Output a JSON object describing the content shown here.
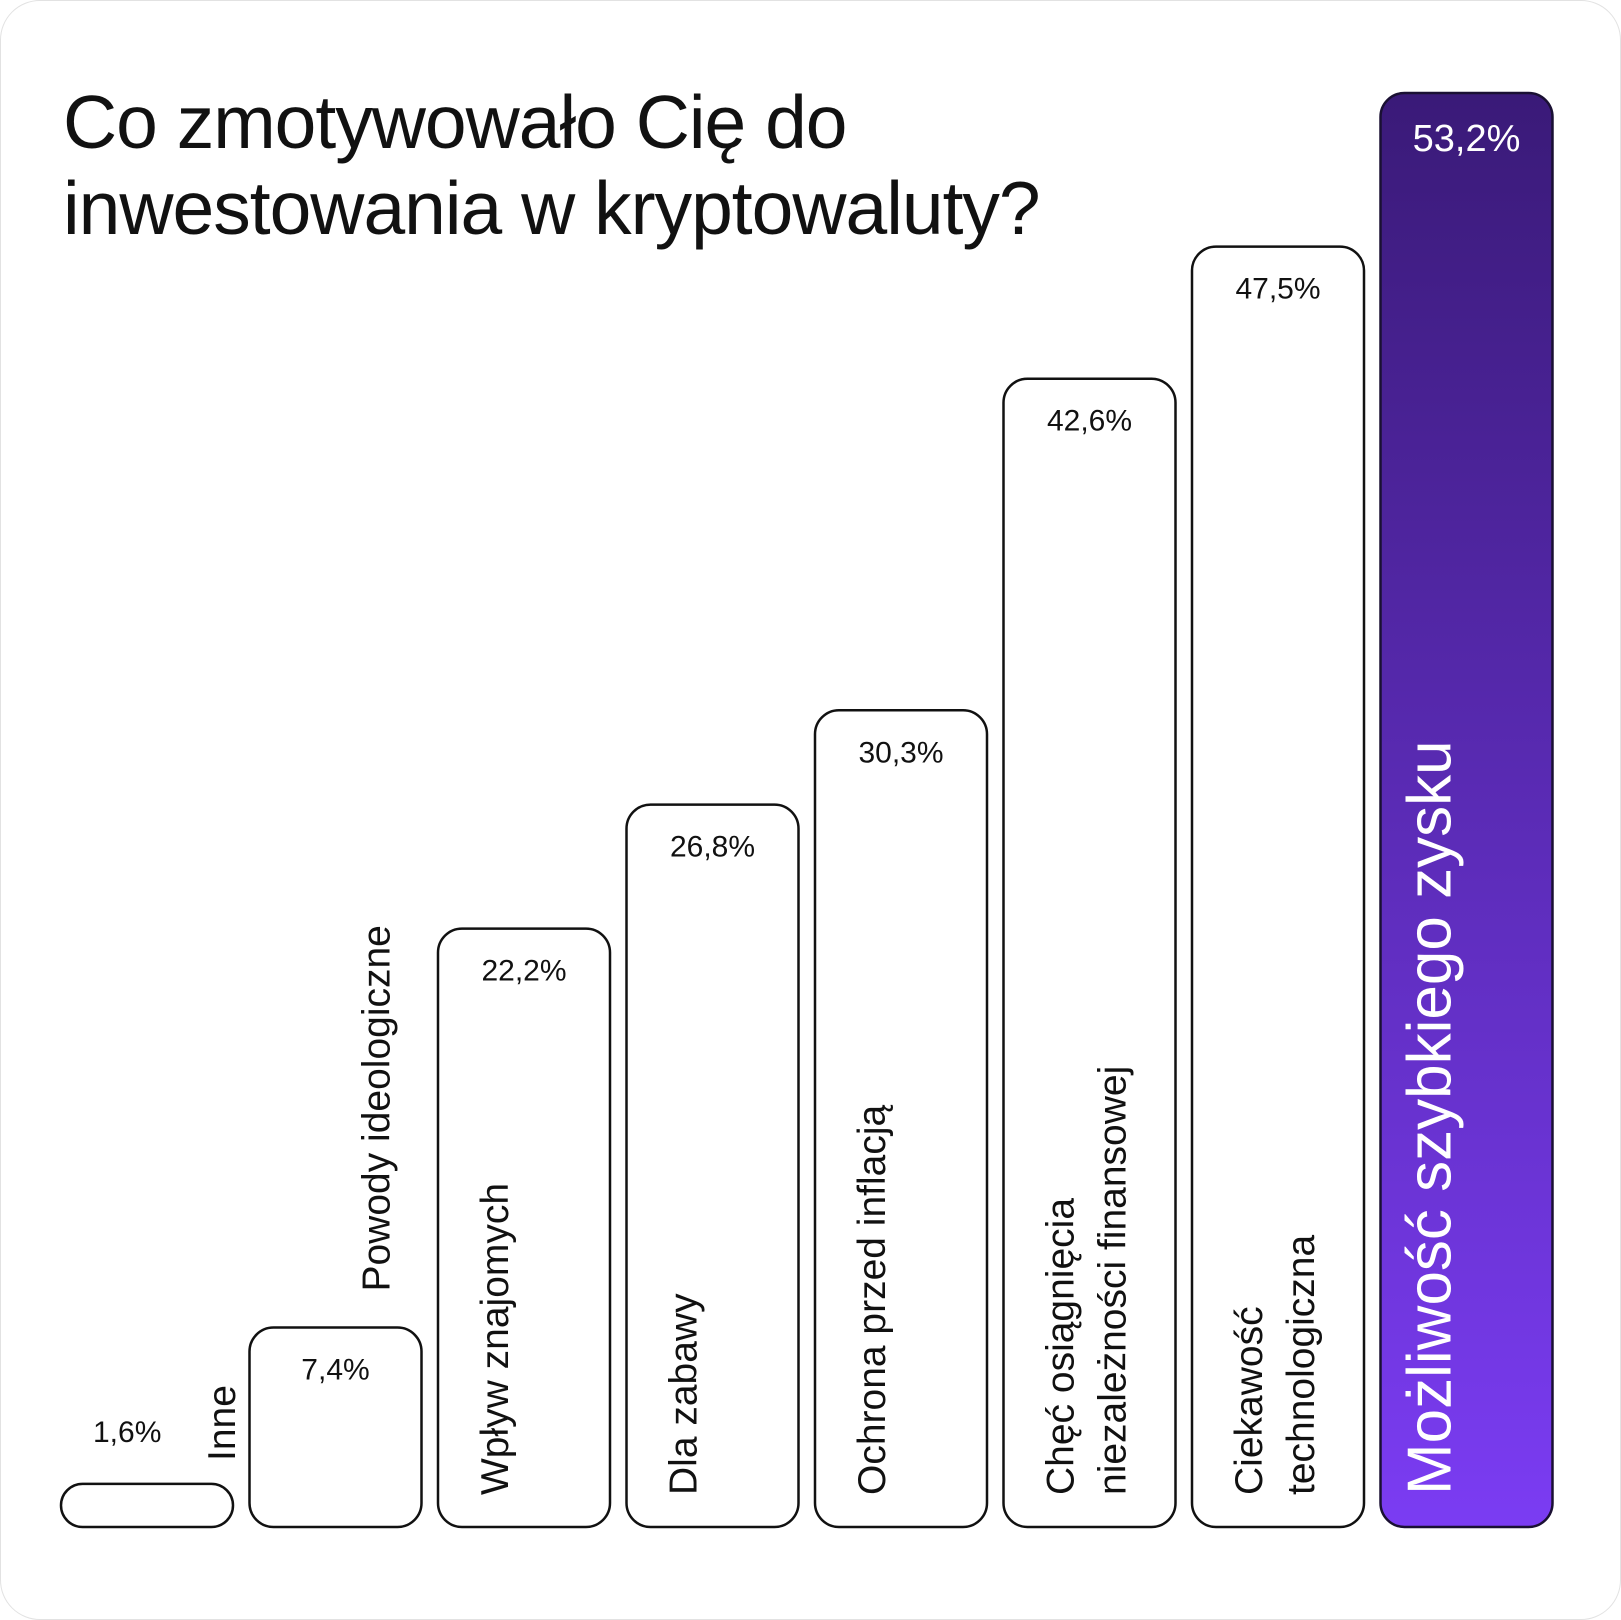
{
  "title": "Co zmotywowało Cię do inwestowania w kryptowaluty?",
  "colors": {
    "highlight_top": "#3a1a78",
    "highlight_bottom": "#7b3cf3",
    "bar_fill": "#ffffff",
    "bar_stroke": "#111111",
    "text": "#111111"
  },
  "chart_data": {
    "type": "bar",
    "title": "Co zmotywowało Cię do inwestowania w kryptowaluty?",
    "xlabel": "",
    "ylabel": "",
    "ylim": [
      0,
      53.2
    ],
    "grid": false,
    "legend": "none",
    "categories": [
      "Inne",
      "Powody ideologiczne",
      "Wpływ znajomych",
      "Dla zabawy",
      "Ochrona przed inflacją",
      "Chęć osiągnięcia niezależności finansowej",
      "Ciekawość technologiczna",
      "Możliwość szybkiego zysku"
    ],
    "values": [
      1.6,
      7.4,
      22.2,
      26.8,
      30.3,
      42.6,
      47.5,
      53.2
    ],
    "value_labels": [
      "1,6%",
      "7,4%",
      "22,2%",
      "26,8%",
      "30,3%",
      "42,6%",
      "47,5%",
      "53,2%"
    ],
    "label_lines": [
      [
        "Inne"
      ],
      [
        "Powody ideologiczne"
      ],
      [
        "Wpływ znajomych"
      ],
      [
        "Dla zabawy"
      ],
      [
        "Ochrona przed inflacją"
      ],
      [
        "Chęć osiągnięcia",
        "niezależności finansowej"
      ],
      [
        "Ciekawość",
        "technologiczna"
      ],
      [
        "Możliwość szybkiego zysku"
      ]
    ],
    "highlight_index": 7
  }
}
